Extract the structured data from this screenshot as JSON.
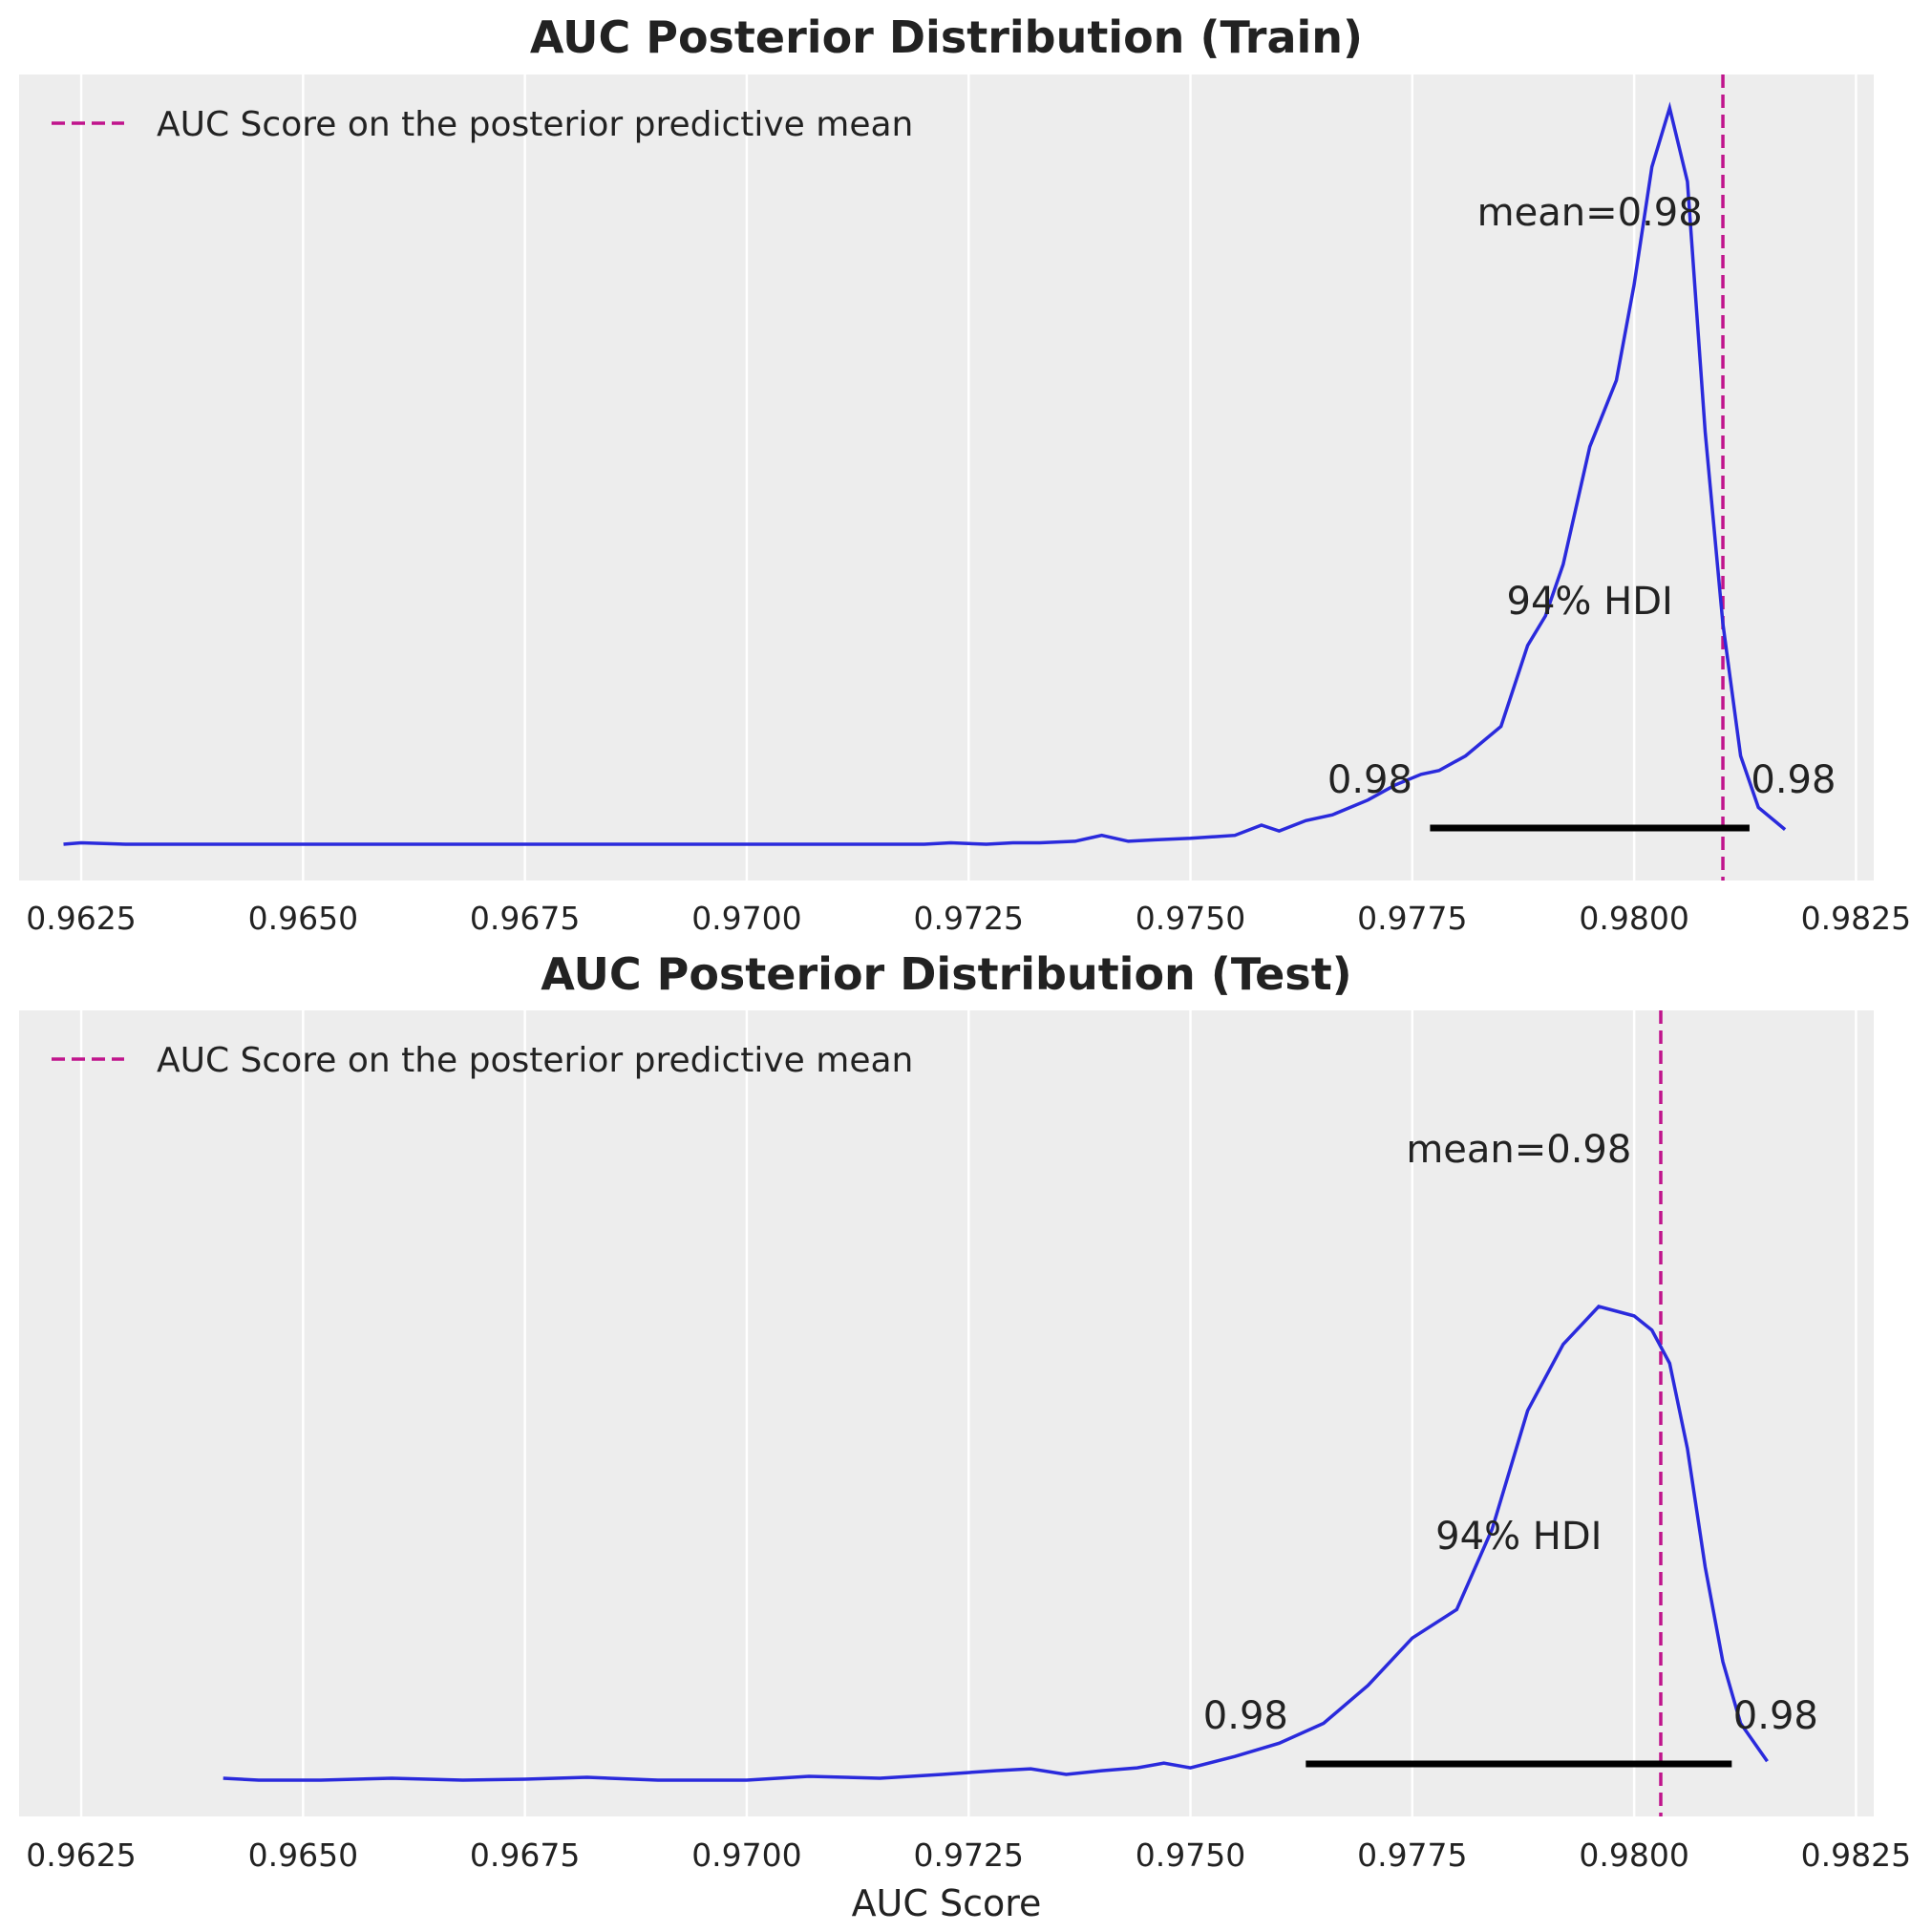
{
  "chart_data": [
    {
      "type": "line",
      "title": "AUC Posterior Distribution (Train)",
      "xlabel": "",
      "xlim": [
        0.9618,
        0.9827
      ],
      "xticks": [
        "0.9625",
        "0.9650",
        "0.9675",
        "0.9700",
        "0.9725",
        "0.9750",
        "0.9775",
        "0.9800",
        "0.9825"
      ],
      "xtick_values": [
        0.9625,
        0.965,
        0.9675,
        0.97,
        0.9725,
        0.975,
        0.9775,
        0.98,
        0.9825
      ],
      "grid": "vertical",
      "legend": {
        "position": "top-left",
        "entries": [
          "AUC Score on the posterior predictive mean"
        ]
      },
      "reference_line": {
        "x": 0.981,
        "label": "AUC Score on the posterior predictive mean",
        "color": "#c0148c"
      },
      "series": [
        {
          "color": "#2a2adc",
          "x": [
            0.9623,
            0.9625,
            0.963,
            0.965,
            0.97,
            0.972,
            0.9723,
            0.9727,
            0.973,
            0.9733,
            0.9737,
            0.974,
            0.9743,
            0.9746,
            0.975,
            0.9755,
            0.9758,
            0.976,
            0.9763,
            0.9766,
            0.977,
            0.9773,
            0.9776,
            0.9778,
            0.9781,
            0.9785,
            0.9788,
            0.979,
            0.9792,
            0.9795,
            0.9798,
            0.98,
            0.9802,
            0.9804,
            0.9806,
            0.9808,
            0.981,
            0.9812,
            0.9814,
            0.9816,
            0.9817
          ],
          "y": [
            0.0,
            0.002,
            0.0,
            0.0,
            0.0,
            0.0,
            0.002,
            0.0,
            0.002,
            0.002,
            0.004,
            0.012,
            0.004,
            0.006,
            0.008,
            0.012,
            0.026,
            0.018,
            0.032,
            0.04,
            0.06,
            0.08,
            0.095,
            0.1,
            0.12,
            0.16,
            0.27,
            0.31,
            0.38,
            0.54,
            0.63,
            0.76,
            0.92,
            1.0,
            0.9,
            0.56,
            0.3,
            0.12,
            0.05,
            0.03,
            0.02
          ]
        }
      ],
      "annotations": {
        "mean": "mean=0.98",
        "hdi": "94% HDI",
        "hdi_low_label": "0.98",
        "hdi_high_label": "0.98",
        "hdi_low": 0.9777,
        "hdi_high": 0.9813
      }
    },
    {
      "type": "line",
      "title": "AUC Posterior Distribution (Test)",
      "xlabel": "AUC Score",
      "xlim": [
        0.9618,
        0.9827
      ],
      "xticks": [
        "0.9625",
        "0.9650",
        "0.9675",
        "0.9700",
        "0.9725",
        "0.9750",
        "0.9775",
        "0.9800",
        "0.9825"
      ],
      "xtick_values": [
        0.9625,
        0.965,
        0.9675,
        0.97,
        0.9725,
        0.975,
        0.9775,
        0.98,
        0.9825
      ],
      "grid": "vertical",
      "legend": {
        "position": "top-left",
        "entries": [
          "AUC Score on the posterior predictive mean"
        ]
      },
      "reference_line": {
        "x": 0.9803,
        "label": "AUC Score on the posterior predictive mean",
        "color": "#c0148c"
      },
      "series": [
        {
          "color": "#2a2adc",
          "x": [
            0.9641,
            0.9645,
            0.9652,
            0.966,
            0.9668,
            0.9675,
            0.9682,
            0.969,
            0.97,
            0.9707,
            0.9715,
            0.9722,
            0.9728,
            0.9732,
            0.9736,
            0.974,
            0.9744,
            0.9747,
            0.975,
            0.9755,
            0.976,
            0.9765,
            0.977,
            0.9775,
            0.978,
            0.9784,
            0.9788,
            0.9792,
            0.9796,
            0.98,
            0.9802,
            0.9804,
            0.9806,
            0.9808,
            0.981,
            0.9812,
            0.9815
          ],
          "y": [
            0.004,
            0.0,
            0.0,
            0.004,
            0.0,
            0.002,
            0.006,
            0.0,
            0.0,
            0.008,
            0.004,
            0.012,
            0.02,
            0.024,
            0.012,
            0.02,
            0.026,
            0.036,
            0.026,
            0.05,
            0.078,
            0.12,
            0.2,
            0.3,
            0.36,
            0.53,
            0.78,
            0.92,
            1.0,
            0.98,
            0.95,
            0.88,
            0.7,
            0.45,
            0.25,
            0.12,
            0.04
          ]
        }
      ],
      "annotations": {
        "mean": "mean=0.98",
        "hdi": "94% HDI",
        "hdi_low_label": "0.98",
        "hdi_high_label": "0.98",
        "hdi_low": 0.9763,
        "hdi_high": 0.9811
      }
    }
  ]
}
